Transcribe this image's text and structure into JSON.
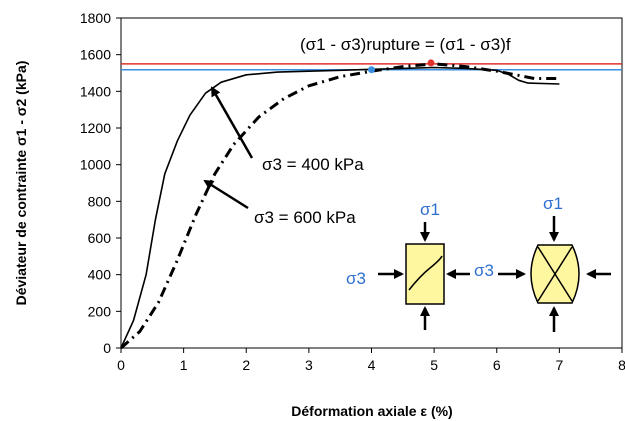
{
  "chart_data": {
    "type": "line",
    "xlabel": "Déformation axiale ε (%)",
    "ylabel": "Déviateur de contrainte σ1 - σ2 (kPa)",
    "xlim": [
      0,
      8
    ],
    "ylim": [
      0,
      1800
    ],
    "x_ticks": [
      "0",
      "1",
      "2",
      "3",
      "4",
      "5",
      "6",
      "7",
      "8"
    ],
    "y_ticks": [
      "0",
      "200",
      "400",
      "600",
      "800",
      "1000",
      "1200",
      "1400",
      "1600",
      "1800"
    ],
    "grid": false,
    "series": [
      {
        "name": "σ3 = 400 kPa",
        "style": "solid",
        "color": "#000000",
        "x": [
          0,
          0.2,
          0.4,
          0.55,
          0.7,
          0.9,
          1.1,
          1.35,
          1.6,
          2.0,
          2.5,
          3.0,
          3.5,
          4.0,
          4.5,
          5.0,
          5.5,
          6.0,
          6.2,
          6.35,
          6.5,
          7.0
        ],
        "y": [
          0,
          150,
          400,
          700,
          950,
          1130,
          1270,
          1390,
          1450,
          1490,
          1505,
          1510,
          1515,
          1520,
          1525,
          1530,
          1525,
          1515,
          1490,
          1460,
          1445,
          1440
        ]
      },
      {
        "name": "σ3 = 600 kPa",
        "style": "dash-dot",
        "color": "#000000",
        "x": [
          0,
          0.3,
          0.6,
          0.9,
          1.2,
          1.5,
          1.8,
          2.2,
          2.6,
          3.0,
          3.5,
          4.0,
          4.5,
          5.0,
          5.5,
          6.0,
          6.3,
          6.6,
          7.0
        ],
        "y": [
          0,
          90,
          250,
          480,
          730,
          950,
          1110,
          1260,
          1360,
          1430,
          1480,
          1510,
          1535,
          1550,
          1535,
          1510,
          1490,
          1470,
          1470
        ]
      }
    ],
    "reference_lines": [
      {
        "y": 1550,
        "color": "#e0302a"
      },
      {
        "y": 1518,
        "color": "#3b8fe0"
      }
    ],
    "markers": [
      {
        "x": 4.0,
        "y": 1518,
        "color": "#3b8fe0"
      },
      {
        "x": 4.95,
        "y": 1555,
        "color": "#e0302a"
      }
    ],
    "annotations": {
      "rupture": "(σ1 - σ3)rupture = (σ1 - σ3)f",
      "label_400": "σ3 = 400 kPa",
      "label_600": "σ3 = 600 kPa",
      "sigma1_a": "σ1",
      "sigma1_b": "σ1",
      "sigma3_a": "σ3",
      "sigma3_b": "σ3"
    }
  }
}
